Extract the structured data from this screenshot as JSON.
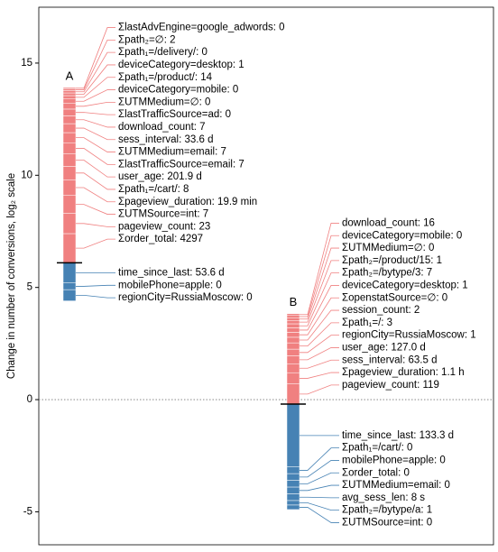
{
  "chart_data": {
    "type": "waterfall",
    "y_label": "Change in number of conversions, log₂ scale",
    "ylim": [
      -6.47,
      17.49
    ],
    "yticks": [
      -5,
      0,
      5,
      10,
      15
    ],
    "reference_line": 0,
    "increase_color": "#f08080",
    "decrease_color": "#4682b4",
    "bars": [
      {
        "name": "A",
        "marker": 6.1,
        "increases": [
          {
            "label": "Σorder_total: 4297",
            "value": 1.3
          },
          {
            "label": "pageview_count: 23",
            "value": 0.9
          },
          {
            "label": "ΣUTMSource=int: 7",
            "value": 0.8
          },
          {
            "label": "Σpageview_duration: 19.9 min",
            "value": 0.7
          },
          {
            "label": "Σpath₁=/cart/: 8",
            "value": 0.6
          },
          {
            "label": "user_age: 201.9 d",
            "value": 0.55
          },
          {
            "label": "ΣlastTrafficSource=email: 7",
            "value": 0.5
          },
          {
            "label": "ΣUTMMedium=email: 7",
            "value": 0.45
          },
          {
            "label": "sess_interval: 33.6 d",
            "value": 0.4
          },
          {
            "label": "download_count: 7",
            "value": 0.35
          },
          {
            "label": "ΣlastTrafficSource=ad: 0",
            "value": 0.3
          },
          {
            "label": "ΣUTMMedium=∅: 0",
            "value": 0.25
          },
          {
            "label": "deviceCategory=mobile: 0",
            "value": 0.2
          },
          {
            "label": "Σpath₁=/product/: 14",
            "value": 0.15
          },
          {
            "label": "deviceCategory=desktop: 1",
            "value": 0.12
          },
          {
            "label": "Σpath₁=/delivery/: 0",
            "value": 0.1
          },
          {
            "label": "Σpath₂=∅: 2",
            "value": 0.08
          },
          {
            "label": "ΣlastAdvEngine=google_adwords: 0",
            "value": 0.06
          }
        ],
        "decreases": [
          {
            "label": "time_since_last: 53.6 d",
            "value": -0.9
          },
          {
            "label": "mobilePhone=apple: 0",
            "value": -0.3
          },
          {
            "label": "regionCity=RussiaMoscow: 0",
            "value": -0.5
          }
        ]
      },
      {
        "name": "B",
        "marker": -0.2,
        "increases": [
          {
            "label": "pageview_count: 119",
            "value": 0.9
          },
          {
            "label": "Σpageview_duration: 1.1 h",
            "value": 0.5
          },
          {
            "label": "sess_interval: 63.5 d",
            "value": 0.4
          },
          {
            "label": "user_age: 127.0 d",
            "value": 0.35
          },
          {
            "label": "regionCity=RussiaMoscow: 1",
            "value": 0.3
          },
          {
            "label": "Σpath₁=/: 3",
            "value": 0.28
          },
          {
            "label": "session_count: 2",
            "value": 0.25
          },
          {
            "label": "ΣopenstatSource=∅: 0",
            "value": 0.22
          },
          {
            "label": "deviceCategory=desktop: 1",
            "value": 0.2
          },
          {
            "label": "Σpath₂=/bytype/3: 7",
            "value": 0.18
          },
          {
            "label": "Σpath₂=/product/15: 1",
            "value": 0.15
          },
          {
            "label": "ΣUTMMedium=∅: 0",
            "value": 0.12
          },
          {
            "label": "deviceCategory=mobile: 0",
            "value": 0.1
          },
          {
            "label": "download_count: 16",
            "value": 0.08
          }
        ],
        "decreases": [
          {
            "label": "time_since_last: 133.3 d",
            "value": -2.8
          },
          {
            "label": "Σpath₁=/cart/: 0",
            "value": -0.3
          },
          {
            "label": "mobilePhone=apple: 0",
            "value": -0.3
          },
          {
            "label": "Σorder_total: 0",
            "value": -0.3
          },
          {
            "label": "ΣUTMMedium=email: 0",
            "value": -0.3
          },
          {
            "label": "avg_sess_len: 8 s",
            "value": -0.3
          },
          {
            "label": "Σpath₂=/bytype/a: 1",
            "value": -0.2
          },
          {
            "label": "ΣUTMSource=int: 0",
            "value": -0.2
          }
        ]
      }
    ]
  }
}
